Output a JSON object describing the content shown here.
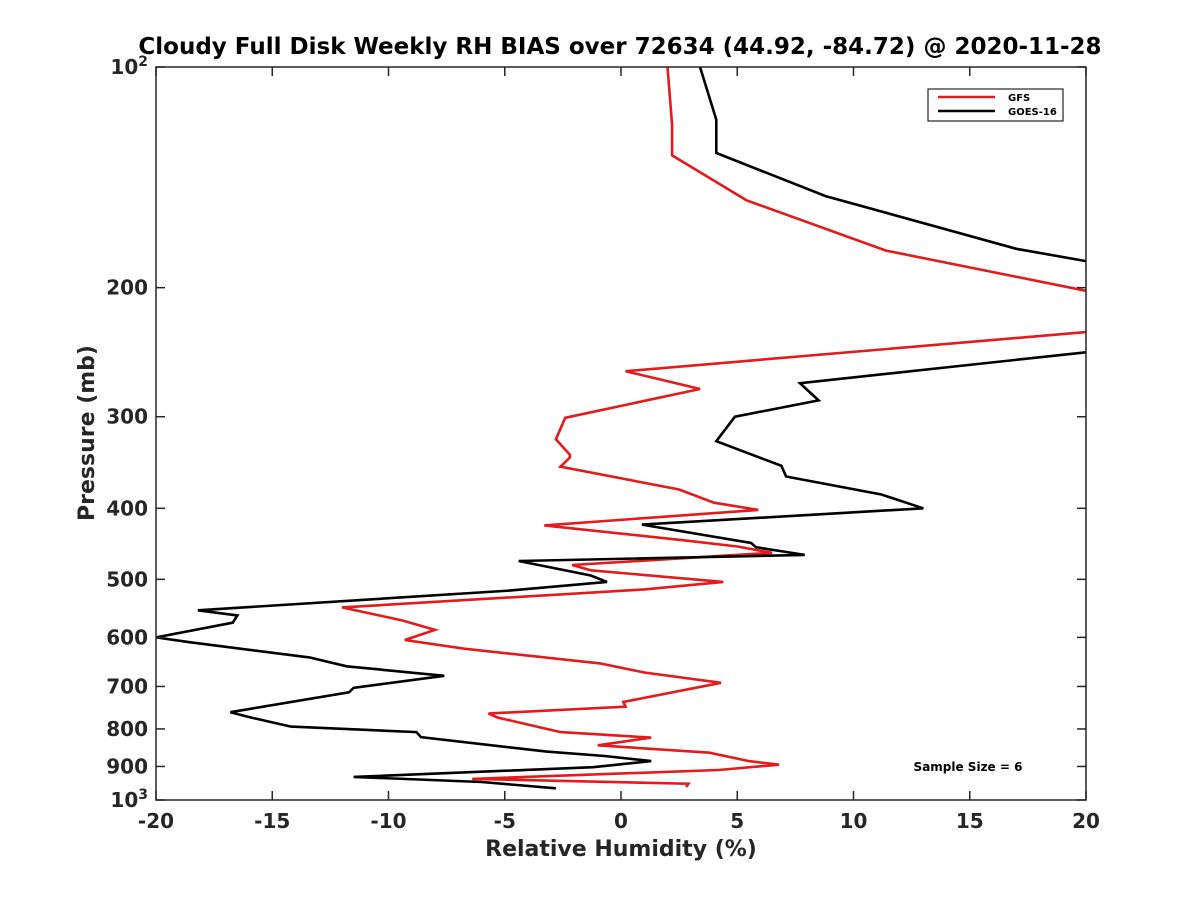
{
  "chart_data": {
    "type": "line",
    "title": "Cloudy Full Disk Weekly RH BIAS over 72634 (44.92, -84.72) @ 2020-11-28",
    "xlabel": "Relative Humidity (%)",
    "ylabel": "Pressure (mb)",
    "xlim": [
      -20,
      20
    ],
    "ylim": [
      100,
      1000
    ],
    "y_scale": "log",
    "y_reversed": true,
    "grid": false,
    "legend_position": "top-right",
    "x_ticks": [
      -20,
      -15,
      -10,
      -5,
      0,
      5,
      10,
      15,
      20
    ],
    "x_tick_labels": [
      "-20",
      "-15",
      "-10",
      "-5",
      "0",
      "5",
      "10",
      "15",
      "20"
    ],
    "y_ticks": [
      100,
      200,
      300,
      400,
      500,
      600,
      700,
      800,
      900,
      1000
    ],
    "y_tick_labels": [
      {
        "base": "10",
        "sup": "2"
      },
      {
        "base": "200",
        "sup": ""
      },
      {
        "base": "300",
        "sup": ""
      },
      {
        "base": "400",
        "sup": ""
      },
      {
        "base": "500",
        "sup": ""
      },
      {
        "base": "600",
        "sup": ""
      },
      {
        "base": "700",
        "sup": ""
      },
      {
        "base": "800",
        "sup": ""
      },
      {
        "base": "900",
        "sup": ""
      },
      {
        "base": "10",
        "sup": "3"
      }
    ],
    "annotation": "Sample Size = 6",
    "series": [
      {
        "name": "GFS",
        "color": "#e41a1c",
        "points": [
          [
            2.8,
            960
          ],
          [
            2.9,
            950
          ],
          [
            -6.4,
            936
          ],
          [
            4.2,
            910
          ],
          [
            6.8,
            895
          ],
          [
            5.5,
            885
          ],
          [
            3.8,
            862
          ],
          [
            -1.0,
            842
          ],
          [
            1.3,
            822
          ],
          [
            -2.6,
            808
          ],
          [
            -5.3,
            772
          ],
          [
            -5.7,
            762
          ],
          [
            0.2,
            746
          ],
          [
            0.1,
            735
          ],
          [
            4.3,
            692
          ],
          [
            1.0,
            670
          ],
          [
            -0.9,
            651
          ],
          [
            -6.7,
            622
          ],
          [
            -9.3,
            605
          ],
          [
            -8.0,
            586
          ],
          [
            -9.4,
            569
          ],
          [
            -12.0,
            546
          ],
          [
            1.0,
            516
          ],
          [
            4.4,
            504
          ],
          [
            -1.3,
            486
          ],
          [
            -2.1,
            478
          ],
          [
            6.5,
            460
          ],
          [
            5.0,
            451
          ],
          [
            2.9,
            443
          ],
          [
            -3.3,
            422
          ],
          [
            5.9,
            402
          ],
          [
            4.0,
            393
          ],
          [
            2.5,
            377
          ],
          [
            -2.6,
            351
          ],
          [
            -2.2,
            341
          ],
          [
            -2.2,
            338
          ],
          [
            -2.8,
            322
          ],
          [
            -2.4,
            301
          ],
          [
            3.4,
            275
          ],
          [
            0.2,
            260
          ],
          [
            20.0,
            230
          ]
        ]
      },
      {
        "name": "GOES-16",
        "color": "#000000",
        "points": [
          [
            -2.8,
            964
          ],
          [
            -6.0,
            945
          ],
          [
            -11.5,
            930
          ],
          [
            -1.2,
            902
          ],
          [
            1.3,
            885
          ],
          [
            -0.7,
            871
          ],
          [
            -3.2,
            859
          ],
          [
            -8.6,
            821
          ],
          [
            -8.8,
            808
          ],
          [
            -14.2,
            794
          ],
          [
            -15.9,
            772
          ],
          [
            -16.8,
            759
          ],
          [
            -11.7,
            713
          ],
          [
            -11.5,
            703
          ],
          [
            -7.6,
            677
          ],
          [
            -11.8,
            657
          ],
          [
            -13.4,
            639
          ],
          [
            -18.6,
            609
          ],
          [
            -20.0,
            600
          ],
          [
            -16.7,
            573
          ],
          [
            -16.5,
            560
          ],
          [
            -18.2,
            551
          ],
          [
            -4.8,
            518
          ],
          [
            -0.6,
            504
          ],
          [
            -1.3,
            494
          ],
          [
            -4.4,
            472
          ],
          [
            7.9,
            463
          ],
          [
            5.8,
            452
          ],
          [
            5.6,
            446
          ],
          [
            0.9,
            421
          ],
          [
            13.0,
            400
          ],
          [
            11.2,
            383
          ],
          [
            7.1,
            362
          ],
          [
            6.9,
            350
          ],
          [
            4.1,
            324
          ],
          [
            4.9,
            300
          ],
          [
            8.5,
            285
          ],
          [
            7.7,
            270
          ],
          [
            20.0,
            245
          ]
        ]
      },
      {
        "name": "GFS",
        "color": "#e41a1c",
        "points": [
          [
            2.0,
            100
          ],
          [
            2.2,
            120
          ],
          [
            2.2,
            132
          ],
          [
            5.4,
            152
          ],
          [
            11.4,
            178
          ],
          [
            20.0,
            202
          ]
        ]
      },
      {
        "name": "GOES-16",
        "color": "#000000",
        "points": [
          [
            3.4,
            100
          ],
          [
            4.1,
            118
          ],
          [
            4.1,
            131
          ],
          [
            8.8,
            150
          ],
          [
            17.0,
            177
          ],
          [
            20.0,
            184
          ]
        ]
      }
    ]
  }
}
